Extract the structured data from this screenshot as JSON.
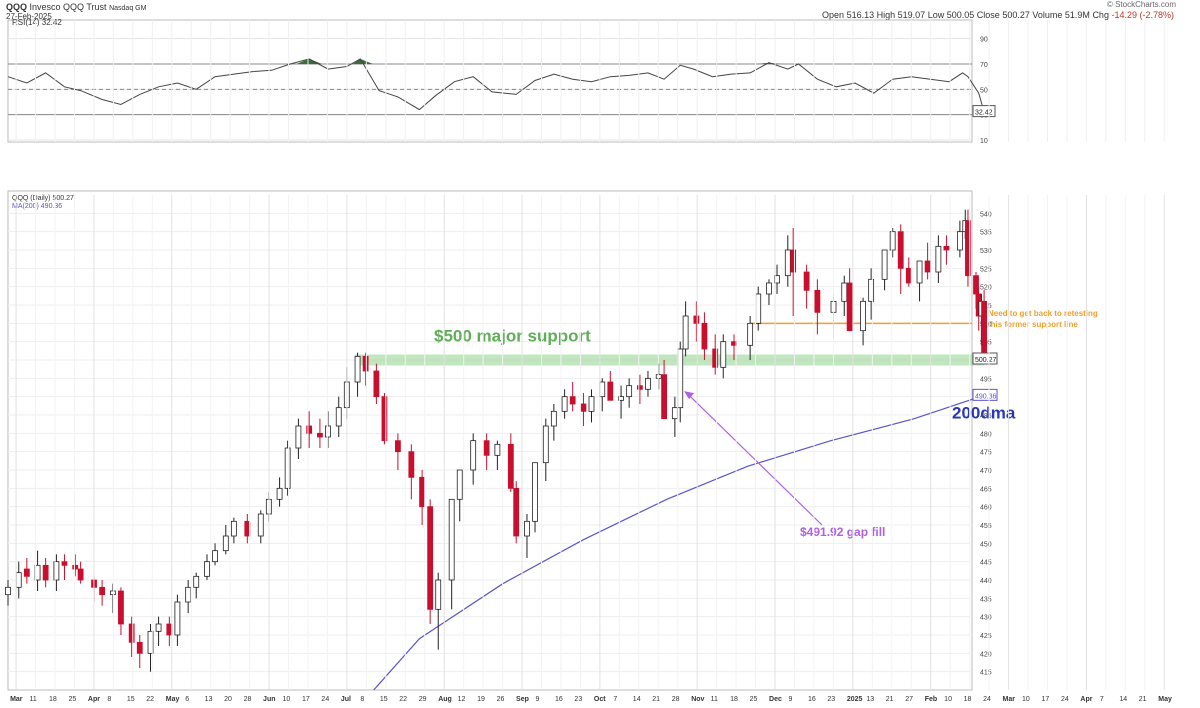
{
  "header": {
    "symbol": "QQQ",
    "name": "Invesco QQQ Trust",
    "exchange": "Nasdaq GM",
    "date": "27-Feb-2025",
    "ohlc": {
      "open_label": "Open",
      "open": "516.13",
      "high_label": "High",
      "high": "519.07",
      "low_label": "Low",
      "low": "500.05",
      "close_label": "Close",
      "close": "500.27",
      "volume_label": "Volume",
      "volume": "51.9M",
      "chg_label": "Chg",
      "chg": "-14.29 (-2.78%)"
    },
    "credit": "© StockCharts.com"
  },
  "chart_data": [
    {
      "type": "line",
      "title": "RSI(14) 32.42",
      "ylim": [
        10,
        100
      ],
      "y_ticks": [
        10,
        30,
        50,
        70,
        90
      ],
      "reference_lines": [
        30,
        50,
        70
      ],
      "last_value_label": "32.42",
      "colors": {
        "line": "#444444",
        "overbought_fill": "#3d6b3a"
      },
      "series": [
        {
          "x": [
            "2024-03-01",
            "2024-03-08",
            "2024-03-15",
            "2024-03-22",
            "2024-03-28",
            "2024-04-05",
            "2024-04-12",
            "2024-04-19",
            "2024-04-26",
            "2024-05-03",
            "2024-05-10",
            "2024-05-17",
            "2024-05-24",
            "2024-05-31",
            "2024-06-07",
            "2024-06-14",
            "2024-06-21",
            "2024-06-28",
            "2024-07-05",
            "2024-07-10",
            "2024-07-17",
            "2024-07-24",
            "2024-08-01",
            "2024-08-07",
            "2024-08-14",
            "2024-08-21",
            "2024-08-28",
            "2024-09-06",
            "2024-09-13",
            "2024-09-20",
            "2024-09-27",
            "2024-10-04",
            "2024-10-11",
            "2024-10-18",
            "2024-10-25",
            "2024-10-31",
            "2024-11-06",
            "2024-11-11",
            "2024-11-18",
            "2024-11-25",
            "2024-12-02",
            "2024-12-09",
            "2024-12-16",
            "2024-12-20",
            "2024-12-27",
            "2025-01-03",
            "2025-01-10",
            "2025-01-17",
            "2025-01-24",
            "2025-01-31",
            "2025-02-07",
            "2025-02-14",
            "2025-02-19",
            "2025-02-21",
            "2025-02-25",
            "2025-02-27"
          ],
          "values": [
            60,
            55,
            63,
            52,
            49,
            42,
            38,
            46,
            52,
            55,
            50,
            60,
            62,
            64,
            65,
            70,
            74,
            66,
            68,
            74,
            49,
            44,
            34,
            45,
            56,
            60,
            48,
            46,
            57,
            62,
            58,
            56,
            60,
            61,
            63,
            58,
            69,
            66,
            60,
            62,
            63,
            71,
            66,
            70,
            58,
            52,
            55,
            47,
            58,
            60,
            58,
            56,
            63,
            60,
            47,
            32
          ]
        }
      ]
    },
    {
      "type": "candlestick",
      "title": "QQQ (Daily) 500.27",
      "ylim": [
        410,
        545
      ],
      "y_ticks": [
        415,
        420,
        425,
        430,
        435,
        440,
        445,
        450,
        455,
        460,
        465,
        470,
        475,
        480,
        485,
        490,
        495,
        500,
        505,
        510,
        515,
        520,
        525,
        530,
        535,
        540
      ],
      "x_ticks": [
        "Mar",
        "11",
        "18",
        "25",
        "Apr",
        "8",
        "15",
        "22",
        "May",
        "6",
        "13",
        "20",
        "28",
        "Jun",
        "10",
        "17",
        "24",
        "Jul",
        "8",
        "15",
        "22",
        "29",
        "Aug",
        "12",
        "19",
        "26",
        "Sep",
        "9",
        "16",
        "23",
        "Oct",
        "7",
        "14",
        "21",
        "28",
        "Nov",
        "11",
        "18",
        "25",
        "Dec",
        "9",
        "16",
        "23",
        "2025",
        "13",
        "21",
        "27",
        "Feb",
        "10",
        "18",
        "24",
        "Mar",
        "10",
        "17",
        "24",
        "Apr",
        "7",
        "14",
        "21",
        "May"
      ],
      "last_price_label": "500.27",
      "ma200_value_label": "490.36",
      "colors": {
        "up": "#ffffff",
        "down": "#c8102e",
        "ma200": "#5b55c8",
        "support_zone": "#8fd18a",
        "resistance_line": "#f0a030",
        "gap_arrow": "#b060e0"
      },
      "ma200": {
        "name": "MA(200) 490.36",
        "x": [
          "2024-07-15",
          "2024-08-01",
          "2024-09-01",
          "2024-10-01",
          "2024-11-01",
          "2024-12-01",
          "2025-01-01",
          "2025-02-01",
          "2025-02-27"
        ],
        "values": [
          410,
          424,
          439,
          451,
          462,
          471,
          478,
          484,
          490.36
        ]
      },
      "series": [
        {
          "name": "QQQ",
          "x": [
            "2024-03-01",
            "2024-03-05",
            "2024-03-08",
            "2024-03-12",
            "2024-03-15",
            "2024-03-19",
            "2024-03-22",
            "2024-03-26",
            "2024-03-28",
            "2024-04-02",
            "2024-04-05",
            "2024-04-09",
            "2024-04-12",
            "2024-04-16",
            "2024-04-19",
            "2024-04-23",
            "2024-04-26",
            "2024-04-30",
            "2024-05-03",
            "2024-05-07",
            "2024-05-10",
            "2024-05-14",
            "2024-05-17",
            "2024-05-21",
            "2024-05-24",
            "2024-05-29",
            "2024-06-03",
            "2024-06-06",
            "2024-06-10",
            "2024-06-13",
            "2024-06-17",
            "2024-06-21",
            "2024-06-25",
            "2024-06-28",
            "2024-07-02",
            "2024-07-05",
            "2024-07-09",
            "2024-07-12",
            "2024-07-16",
            "2024-07-19",
            "2024-07-24",
            "2024-07-29",
            "2024-08-02",
            "2024-08-05",
            "2024-08-08",
            "2024-08-13",
            "2024-08-16",
            "2024-08-21",
            "2024-08-26",
            "2024-08-30",
            "2024-09-04",
            "2024-09-06",
            "2024-09-10",
            "2024-09-13",
            "2024-09-17",
            "2024-09-20",
            "2024-09-24",
            "2024-09-27",
            "2024-10-01",
            "2024-10-04",
            "2024-10-08",
            "2024-10-11",
            "2024-10-15",
            "2024-10-18",
            "2024-10-22",
            "2024-10-25",
            "2024-10-29",
            "2024-10-31",
            "2024-11-04",
            "2024-11-06",
            "2024-11-08",
            "2024-11-12",
            "2024-11-15",
            "2024-11-19",
            "2024-11-22",
            "2024-11-26",
            "2024-12-02",
            "2024-12-05",
            "2024-12-09",
            "2024-12-12",
            "2024-12-16",
            "2024-12-18",
            "2024-12-23",
            "2024-12-27",
            "2025-01-02",
            "2025-01-06",
            "2025-01-08",
            "2025-01-13",
            "2025-01-16",
            "2025-01-21",
            "2025-01-24",
            "2025-01-27",
            "2025-01-30",
            "2025-02-03",
            "2025-02-06",
            "2025-02-10",
            "2025-02-13",
            "2025-02-18",
            "2025-02-20",
            "2025-02-21",
            "2025-02-24",
            "2025-02-25",
            "2025-02-26",
            "2025-02-27"
          ],
          "open": [
            436,
            438,
            443,
            440,
            444,
            440,
            445,
            444,
            443,
            440,
            438,
            436,
            437,
            428,
            423,
            420,
            426,
            428,
            425,
            434,
            438,
            441,
            445,
            448,
            452,
            456,
            452,
            458,
            462,
            465,
            476,
            482,
            480,
            479,
            482,
            487,
            494,
            501,
            497,
            490,
            478,
            475,
            468,
            460,
            432,
            440,
            462,
            470,
            478,
            474,
            477,
            465,
            452,
            456,
            472,
            482,
            486,
            490,
            488,
            486,
            490,
            494,
            489,
            490,
            493,
            492,
            495,
            496,
            484,
            487,
            503,
            512,
            510,
            503,
            498,
            505,
            504,
            510,
            518,
            521,
            523,
            530,
            524,
            519,
            513,
            516,
            521,
            508,
            516,
            522,
            530,
            535,
            525,
            521,
            527,
            524,
            531,
            530,
            535,
            538,
            523,
            518,
            512,
            516
          ],
          "high": [
            440,
            445,
            446,
            448,
            446,
            447,
            447,
            447,
            445,
            441,
            440,
            439,
            438,
            430,
            425,
            428,
            430,
            430,
            436,
            440,
            442,
            447,
            450,
            455,
            457,
            458,
            459,
            464,
            468,
            478,
            484,
            486,
            484,
            486,
            490,
            498,
            502,
            502,
            499,
            491,
            480,
            477,
            470,
            462,
            442,
            462,
            470,
            480,
            480,
            478,
            480,
            467,
            458,
            472,
            484,
            488,
            492,
            494,
            491,
            492,
            495,
            497,
            493,
            495,
            496,
            497,
            499,
            500,
            490,
            505,
            516,
            516,
            513,
            507,
            507,
            507,
            512,
            520,
            522,
            526,
            534,
            536,
            526,
            522,
            518,
            523,
            525,
            517,
            525,
            530,
            536,
            537,
            528,
            527,
            532,
            534,
            534,
            538,
            541,
            541,
            524,
            520,
            518,
            519.07
          ],
          "low": [
            433,
            435,
            439,
            437,
            438,
            437,
            440,
            441,
            439,
            434,
            433,
            431,
            425,
            419,
            416,
            415,
            422,
            422,
            422,
            431,
            435,
            440,
            444,
            447,
            450,
            450,
            450,
            456,
            460,
            463,
            473,
            476,
            476,
            476,
            479,
            484,
            490,
            493,
            488,
            477,
            470,
            462,
            455,
            428,
            421,
            432,
            456,
            466,
            470,
            470,
            464,
            450,
            446,
            453,
            467,
            478,
            484,
            486,
            482,
            483,
            486,
            489,
            484,
            487,
            488,
            490,
            492,
            484,
            479,
            483,
            501,
            505,
            500,
            496,
            495,
            500,
            500,
            508,
            515,
            518,
            520,
            512,
            514,
            507,
            506,
            512,
            508,
            504,
            511,
            519,
            528,
            518,
            520,
            516,
            522,
            521,
            526,
            528,
            533,
            520,
            514,
            508,
            504,
            500.05
          ],
          "close": [
            438,
            442,
            441,
            444,
            440,
            445,
            444,
            443,
            440,
            438,
            436,
            437,
            428,
            423,
            420,
            426,
            428,
            425,
            434,
            438,
            441,
            445,
            448,
            452,
            456,
            452,
            458,
            462,
            465,
            476,
            482,
            480,
            479,
            482,
            487,
            494,
            501,
            497,
            490,
            478,
            475,
            468,
            460,
            432,
            440,
            462,
            470,
            478,
            474,
            477,
            465,
            452,
            456,
            472,
            482,
            486,
            490,
            488,
            486,
            490,
            494,
            489,
            490,
            493,
            492,
            495,
            496,
            484,
            487,
            503,
            512,
            510,
            503,
            498,
            505,
            504,
            510,
            518,
            521,
            523,
            530,
            524,
            519,
            513,
            516,
            521,
            508,
            516,
            522,
            530,
            535,
            525,
            521,
            527,
            524,
            531,
            530,
            535,
            538,
            523,
            518,
            512,
            516,
            500.27
          ]
        }
      ],
      "annotations": [
        {
          "text": "$500 major support",
          "price": 500
        },
        {
          "text": "Need to get back to retesting this former support line",
          "price": 510
        },
        {
          "text": "200dma"
        },
        {
          "text": "$491.92 gap fill",
          "price": 491.92
        }
      ]
    }
  ]
}
